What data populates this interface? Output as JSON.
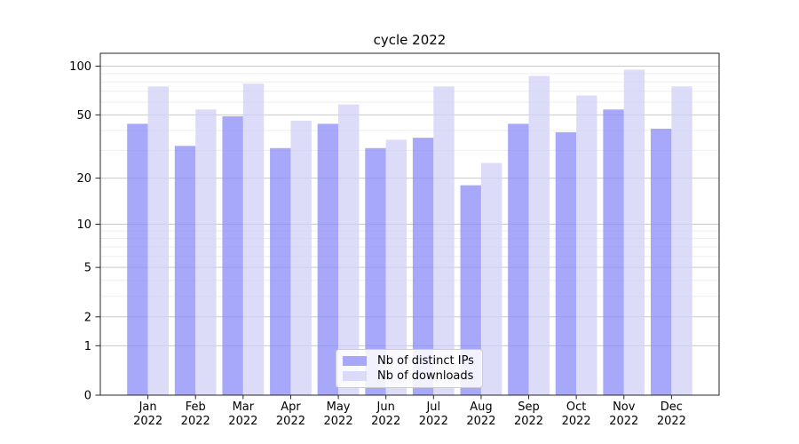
{
  "chart_data": {
    "type": "bar",
    "title": "cycle 2022",
    "categories": [
      "Jan",
      "Feb",
      "Mar",
      "Apr",
      "May",
      "Jun",
      "Jul",
      "Aug",
      "Sep",
      "Oct",
      "Nov",
      "Dec"
    ],
    "year_label": "2022",
    "series": [
      {
        "name": "Nb of distinct IPs",
        "color": "#9090f8",
        "values": [
          44,
          32,
          49,
          31,
          44,
          31,
          36,
          18,
          44,
          39,
          54,
          41
        ]
      },
      {
        "name": "Nb of downloads",
        "color": "#d2d2f7",
        "values": [
          75,
          54,
          78,
          46,
          58,
          35,
          75,
          25,
          87,
          66,
          95,
          75
        ]
      }
    ],
    "bar_opacity": 0.78,
    "y_axis": {
      "scale": "log1p",
      "ticks": [
        0,
        1,
        2,
        5,
        10,
        20,
        50,
        100
      ],
      "minor_gridlines": [
        3,
        4,
        6,
        7,
        8,
        9,
        30,
        40,
        60,
        70,
        80,
        90
      ],
      "ylim": [
        0,
        120
      ]
    },
    "legend_position": "lower center",
    "grid": true,
    "colors": {
      "major_grid": "#c9c9c9",
      "minor_grid": "#ededed",
      "axis_frame": "#262626",
      "tick_text": "#000000"
    }
  }
}
